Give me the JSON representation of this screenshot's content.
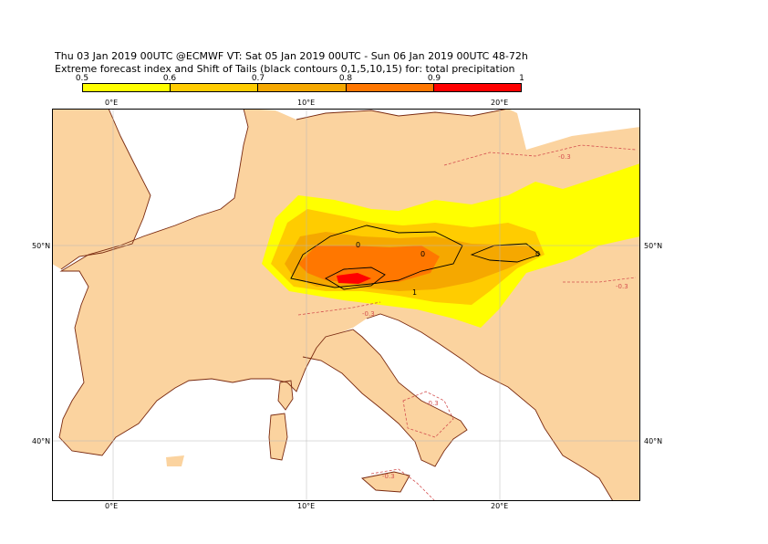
{
  "title": {
    "line1": "Thu 03 Jan 2019 00UTC @ECMWF VT: Sat 05 Jan 2019 00UTC - Sun 06 Jan 2019 00UTC  48-72h",
    "line2": "Extreme forecast index and Shift of Tails (black contours 0,1,5,10,15) for: total precipitation"
  },
  "colorbar": {
    "labels": [
      "0.5",
      "0.6",
      "0.7",
      "0.8",
      "0.9",
      "1"
    ],
    "colors": [
      "#ffff00",
      "#ffcc00",
      "#f5a800",
      "#ff7700",
      "#ff0000"
    ]
  },
  "map": {
    "land_color": "#fbd39f",
    "sea_color": "#ffffff",
    "coast_color": "#7a2a10",
    "grid_color": "#b8b8b8",
    "lon_labels": [
      "0°E",
      "10°E",
      "20°E"
    ],
    "lat_labels": [
      "50°N",
      "40°N"
    ],
    "efi_neg_label": "-0.3",
    "sot_labels": [
      "0",
      "0",
      "1",
      "0"
    ]
  }
}
